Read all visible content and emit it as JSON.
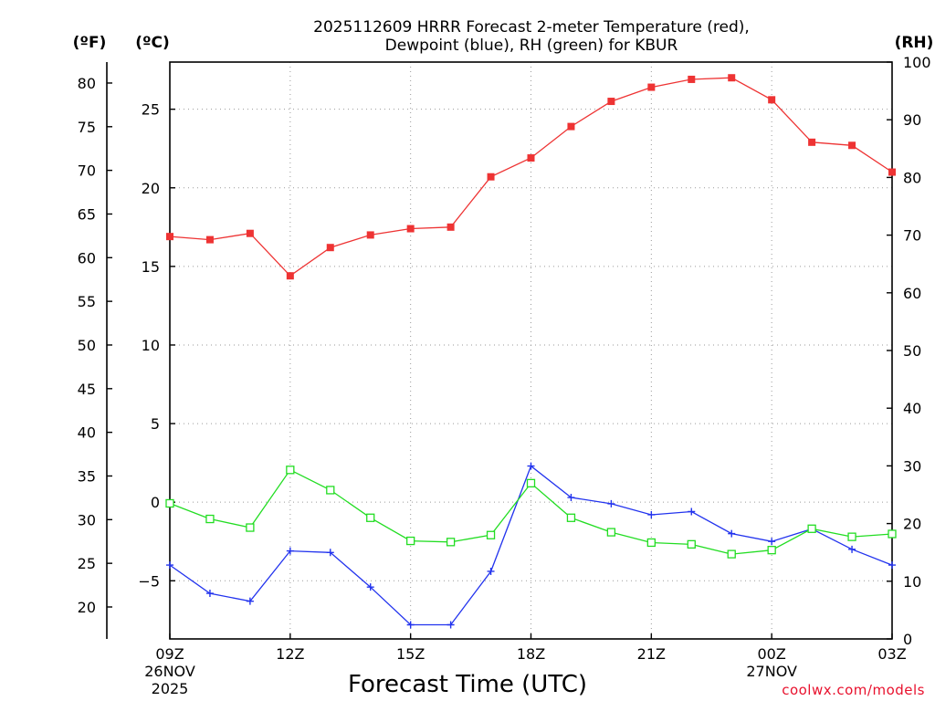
{
  "chart_data": {
    "type": "line",
    "title_line1": "2025112609 HRRR Forecast 2-meter Temperature (red),",
    "title_line2": "Dewpoint (blue), RH (green) for KBUR",
    "xlabel": "Forecast Time (UTC)",
    "credit": "coolwx.com/models",
    "units": {
      "fahrenheit": "(ºF)",
      "celsius": "(ºC)",
      "rh": "(RH)"
    },
    "x": [
      "09Z",
      "10Z",
      "11Z",
      "12Z",
      "13Z",
      "14Z",
      "15Z",
      "16Z",
      "17Z",
      "18Z",
      "19Z",
      "20Z",
      "21Z",
      "22Z",
      "23Z",
      "00Z",
      "01Z",
      "02Z",
      "03Z"
    ],
    "x_ticks": [
      {
        "label": "09Z",
        "sub1": "26NOV",
        "sub2": "2025",
        "index": 0
      },
      {
        "label": "12Z",
        "sub1": "",
        "sub2": "",
        "index": 3
      },
      {
        "label": "15Z",
        "sub1": "",
        "sub2": "",
        "index": 6
      },
      {
        "label": "18Z",
        "sub1": "",
        "sub2": "",
        "index": 9
      },
      {
        "label": "21Z",
        "sub1": "",
        "sub2": "",
        "index": 12
      },
      {
        "label": "00Z",
        "sub1": "27NOV",
        "sub2": "",
        "index": 15
      },
      {
        "label": "03Z",
        "sub1": "",
        "sub2": "",
        "index": 18
      }
    ],
    "celsius_range": [
      -8.7,
      28.0
    ],
    "fahrenheit_ticks": [
      20,
      25,
      30,
      35,
      40,
      45,
      50,
      55,
      60,
      65,
      70,
      75,
      80
    ],
    "celsius_ticks": [
      -5,
      0,
      5,
      10,
      15,
      20,
      25
    ],
    "rh_range": [
      0,
      100
    ],
    "rh_ticks": [
      0,
      10,
      20,
      30,
      40,
      50,
      60,
      70,
      80,
      90,
      100
    ],
    "series": [
      {
        "name": "Temperature",
        "unit": "C",
        "color": "#ee3333",
        "marker": "filled-square",
        "values": [
          16.9,
          16.7,
          17.1,
          14.4,
          16.2,
          17.0,
          17.4,
          17.5,
          20.7,
          21.9,
          23.9,
          25.5,
          26.4,
          26.9,
          27.0,
          25.6,
          22.9,
          22.7,
          21.0
        ]
      },
      {
        "name": "Dewpoint",
        "unit": "C",
        "color": "#2233ee",
        "marker": "plus",
        "values": [
          -4.0,
          -5.8,
          -6.3,
          -3.1,
          -3.2,
          -5.4,
          -7.8,
          -7.8,
          -4.4,
          2.3,
          0.3,
          -0.1,
          -0.8,
          -0.6,
          -2.0,
          -2.5,
          -1.7,
          -3.0,
          -4.0
        ]
      },
      {
        "name": "RH",
        "unit": "%",
        "color": "#22dd22",
        "marker": "open-square",
        "values": [
          23.5,
          20.8,
          19.3,
          29.3,
          25.8,
          21.0,
          17.0,
          16.8,
          18.0,
          27.0,
          21.0,
          18.5,
          16.7,
          16.4,
          14.7,
          15.4,
          19.1,
          17.7,
          18.2
        ]
      }
    ]
  }
}
